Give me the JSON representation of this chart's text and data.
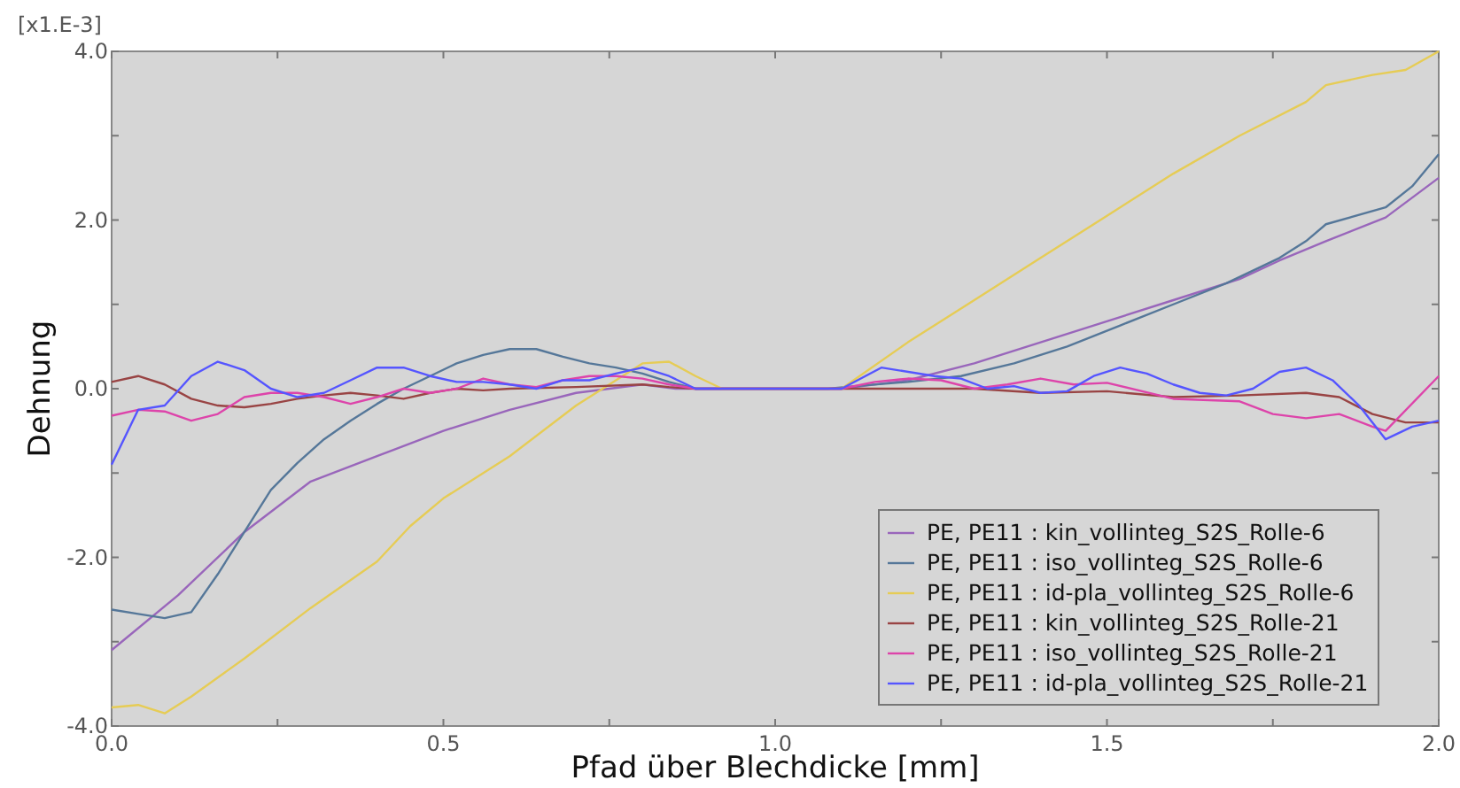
{
  "chart_data": {
    "type": "line",
    "xlabel": "Pfad über Blechdicke [mm]",
    "ylabel": "Dehnung",
    "annotations": [
      "[x1.E-3]"
    ],
    "xlim": [
      0,
      2
    ],
    "ylim": [
      -4,
      4
    ],
    "xticks": [
      {
        "value": 0,
        "label": "0.0"
      },
      {
        "value": 0.25,
        "label": null
      },
      {
        "value": 0.5,
        "label": "0.5"
      },
      {
        "value": 0.75,
        "label": null
      },
      {
        "value": 1,
        "label": "1.0"
      },
      {
        "value": 1.25,
        "label": null
      },
      {
        "value": 1.5,
        "label": "1.5"
      },
      {
        "value": 1.75,
        "label": null
      },
      {
        "value": 2,
        "label": "2.0"
      }
    ],
    "yticks": [
      {
        "value": -4,
        "label": "-4.0"
      },
      {
        "value": -3,
        "label": null
      },
      {
        "value": -2,
        "label": "-2.0"
      },
      {
        "value": -1,
        "label": null
      },
      {
        "value": 0,
        "label": "0.0"
      },
      {
        "value": 1,
        "label": null
      },
      {
        "value": 2,
        "label": "2.0"
      },
      {
        "value": 3,
        "label": null
      },
      {
        "value": 4,
        "label": "4.0"
      }
    ],
    "grid": false,
    "legend": "bottom right",
    "marker": "none",
    "line_style": "solid",
    "series": [
      {
        "name": "PE, PE11 : kin_vollinteg_S2S_Rolle-6",
        "color": "#9966bb",
        "x": [
          0,
          0.1,
          0.2,
          0.3,
          0.4,
          0.5,
          0.6,
          0.7,
          0.75,
          0.8,
          0.85,
          1.1,
          1.2,
          1.3,
          1.4,
          1.5,
          1.6,
          1.7,
          1.76,
          1.83,
          1.92,
          2.0
        ],
        "values": [
          -3.1,
          -2.45,
          -1.7,
          -1.1,
          -0.8,
          -0.5,
          -0.25,
          -0.05,
          0.0,
          0.05,
          0.0,
          0.0,
          0.1,
          0.3,
          0.55,
          0.8,
          1.05,
          1.3,
          1.52,
          1.75,
          2.03,
          2.5
        ]
      },
      {
        "name": "PE, PE11 : iso_vollinteg_S2S_Rolle-6",
        "color": "#557799",
        "x": [
          0,
          0.04,
          0.08,
          0.12,
          0.16,
          0.2,
          0.24,
          0.28,
          0.32,
          0.36,
          0.4,
          0.44,
          0.48,
          0.52,
          0.56,
          0.6,
          0.64,
          0.68,
          0.72,
          0.76,
          0.8,
          0.84,
          0.88,
          1.08,
          1.12,
          1.2,
          1.28,
          1.36,
          1.44,
          1.52,
          1.6,
          1.68,
          1.76,
          1.8,
          1.83,
          1.92,
          1.96,
          2.0
        ],
        "values": [
          -2.62,
          -2.67,
          -2.72,
          -2.65,
          -2.2,
          -1.7,
          -1.2,
          -0.88,
          -0.6,
          -0.38,
          -0.18,
          0.0,
          0.15,
          0.3,
          0.4,
          0.47,
          0.47,
          0.38,
          0.3,
          0.25,
          0.18,
          0.08,
          0.0,
          0.0,
          0.03,
          0.08,
          0.15,
          0.3,
          0.5,
          0.75,
          1.0,
          1.25,
          1.55,
          1.75,
          1.95,
          2.15,
          2.4,
          2.78
        ]
      },
      {
        "name": "PE, PE11 : id-pla_vollinteg_S2S_Rolle-6",
        "color": "#e6cc55",
        "x": [
          0,
          0.04,
          0.08,
          0.12,
          0.2,
          0.3,
          0.4,
          0.45,
          0.5,
          0.6,
          0.7,
          0.8,
          0.84,
          0.88,
          0.92,
          1.1,
          1.2,
          1.3,
          1.4,
          1.5,
          1.6,
          1.7,
          1.8,
          1.83,
          1.9,
          1.95,
          2.0
        ],
        "values": [
          -3.78,
          -3.75,
          -3.85,
          -3.65,
          -3.2,
          -2.6,
          -2.05,
          -1.63,
          -1.3,
          -0.8,
          -0.2,
          0.3,
          0.32,
          0.15,
          0.0,
          0.0,
          0.55,
          1.05,
          1.55,
          2.05,
          2.55,
          3.0,
          3.4,
          3.6,
          3.72,
          3.78,
          4.0
        ]
      },
      {
        "name": "PE, PE11 : kin_vollinteg_S2S_Rolle-21",
        "color": "#994444",
        "x": [
          0,
          0.04,
          0.08,
          0.12,
          0.16,
          0.2,
          0.24,
          0.28,
          0.32,
          0.36,
          0.4,
          0.44,
          0.48,
          0.52,
          0.56,
          0.6,
          0.7,
          0.8,
          0.84,
          0.88,
          1.3,
          1.4,
          1.5,
          1.6,
          1.7,
          1.8,
          1.85,
          1.9,
          1.95,
          2.0
        ],
        "values": [
          0.08,
          0.15,
          0.05,
          -0.12,
          -0.2,
          -0.22,
          -0.18,
          -0.12,
          -0.08,
          -0.05,
          -0.08,
          -0.12,
          -0.05,
          0.0,
          -0.02,
          0.0,
          0.02,
          0.05,
          0.02,
          0.0,
          0.0,
          -0.05,
          -0.03,
          -0.1,
          -0.08,
          -0.05,
          -0.1,
          -0.3,
          -0.4,
          -0.4
        ]
      },
      {
        "name": "PE, PE11 : iso_vollinteg_S2S_Rolle-21",
        "color": "#dd44aa",
        "x": [
          0,
          0.04,
          0.08,
          0.12,
          0.16,
          0.2,
          0.24,
          0.28,
          0.32,
          0.36,
          0.4,
          0.44,
          0.48,
          0.52,
          0.56,
          0.6,
          0.64,
          0.68,
          0.72,
          0.76,
          0.8,
          0.84,
          0.88,
          1.1,
          1.15,
          1.2,
          1.25,
          1.3,
          1.35,
          1.4,
          1.45,
          1.5,
          1.6,
          1.7,
          1.75,
          1.8,
          1.85,
          1.9,
          1.92,
          2.0
        ],
        "values": [
          -0.32,
          -0.25,
          -0.27,
          -0.38,
          -0.3,
          -0.1,
          -0.05,
          -0.05,
          -0.1,
          -0.18,
          -0.1,
          0.0,
          -0.05,
          0.0,
          0.12,
          0.05,
          0.02,
          0.1,
          0.15,
          0.15,
          0.12,
          0.05,
          0.0,
          0.0,
          0.08,
          0.12,
          0.1,
          0.0,
          0.05,
          0.12,
          0.05,
          0.07,
          -0.12,
          -0.15,
          -0.3,
          -0.35,
          -0.3,
          -0.45,
          -0.5,
          0.15
        ]
      },
      {
        "name": "PE, PE11 : id-pla_vollinteg_S2S_Rolle-21",
        "color": "#5555ff",
        "x": [
          0,
          0.04,
          0.08,
          0.12,
          0.16,
          0.2,
          0.24,
          0.28,
          0.32,
          0.36,
          0.4,
          0.44,
          0.48,
          0.52,
          0.56,
          0.6,
          0.64,
          0.68,
          0.72,
          0.76,
          0.8,
          0.84,
          0.88,
          1.1,
          1.16,
          1.24,
          1.28,
          1.32,
          1.36,
          1.4,
          1.44,
          1.48,
          1.52,
          1.56,
          1.6,
          1.64,
          1.68,
          1.72,
          1.76,
          1.8,
          1.84,
          1.88,
          1.92,
          1.96,
          2.0
        ],
        "values": [
          -0.9,
          -0.25,
          -0.2,
          0.15,
          0.32,
          0.22,
          0.0,
          -0.1,
          -0.05,
          0.1,
          0.25,
          0.25,
          0.15,
          0.08,
          0.08,
          0.05,
          0.0,
          0.1,
          0.1,
          0.18,
          0.25,
          0.15,
          0.0,
          0.0,
          0.25,
          0.15,
          0.12,
          0.0,
          0.03,
          -0.05,
          -0.03,
          0.15,
          0.25,
          0.18,
          0.05,
          -0.05,
          -0.08,
          0.0,
          0.2,
          0.25,
          0.1,
          -0.2,
          -0.6,
          -0.45,
          -0.38
        ]
      }
    ]
  }
}
